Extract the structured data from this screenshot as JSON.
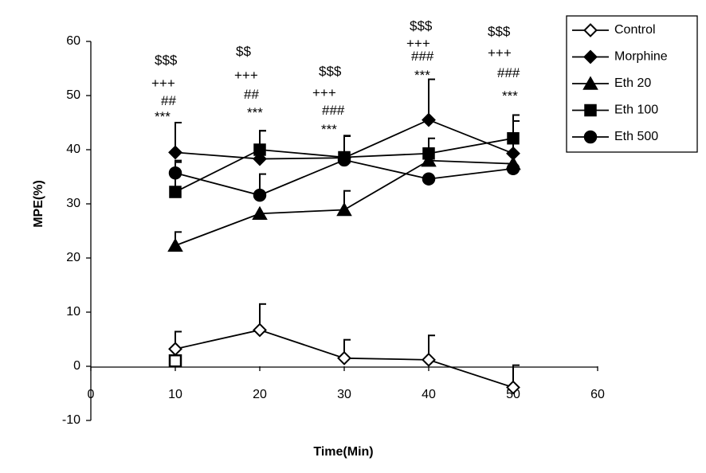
{
  "chart_data": {
    "type": "line",
    "xlabel": "Time(Min)",
    "ylabel": "MPE(%)",
    "xlim": [
      0,
      60
    ],
    "ylim": [
      -10,
      60
    ],
    "xticks": [
      0,
      10,
      20,
      30,
      40,
      50,
      60
    ],
    "yticks": [
      -10,
      0,
      10,
      20,
      30,
      40,
      50,
      60
    ],
    "grid": false,
    "legend_position": "top-right",
    "x": [
      10,
      20,
      30,
      40,
      50
    ],
    "series": [
      {
        "name": "Control",
        "marker": "open-diamond",
        "values": [
          3.2,
          6.7,
          1.5,
          1.2,
          -3.9
        ],
        "error": [
          3.2,
          4.8,
          3.4,
          4.5,
          4.1
        ]
      },
      {
        "name": "Morphine",
        "marker": "diamond",
        "values": [
          39.5,
          38.3,
          38.5,
          45.5,
          39.3
        ],
        "error": [
          5.5,
          5.2,
          4.0,
          7.5,
          6.0
        ]
      },
      {
        "name": "Eth 20",
        "marker": "triangle",
        "values": [
          22.3,
          28.2,
          28.9,
          38.0,
          37.4
        ],
        "error": [
          2.5,
          0,
          3.5,
          0,
          0
        ]
      },
      {
        "name": "Eth 100",
        "marker": "square",
        "values": [
          32.2,
          40.0,
          38.6,
          39.3,
          42.1
        ],
        "error": [
          5.8,
          3.5,
          4.0,
          2.8,
          4.3
        ]
      },
      {
        "name": "Eth 500",
        "marker": "circle",
        "values": [
          35.7,
          31.6,
          38.1,
          34.6,
          36.5
        ],
        "error": [
          2.0,
          3.9,
          0,
          0,
          0
        ]
      }
    ],
    "anomalous_points": [
      {
        "series": "Eth 500",
        "x": 10,
        "y": 1.0,
        "marker": "open-square"
      }
    ],
    "annotations": [
      {
        "x": 10,
        "lines": [
          "$$$",
          "+++",
          "##",
          "***"
        ]
      },
      {
        "x": 20,
        "lines": [
          "$$",
          "+++",
          "##",
          "***"
        ]
      },
      {
        "x": 30,
        "lines": [
          "$$$",
          "+++",
          "###",
          "***"
        ]
      },
      {
        "x": 40,
        "lines": [
          "$$$",
          "+++",
          "###",
          "***"
        ]
      },
      {
        "x": 50,
        "lines": [
          "$$$",
          "+++",
          "###",
          "***"
        ]
      }
    ]
  }
}
